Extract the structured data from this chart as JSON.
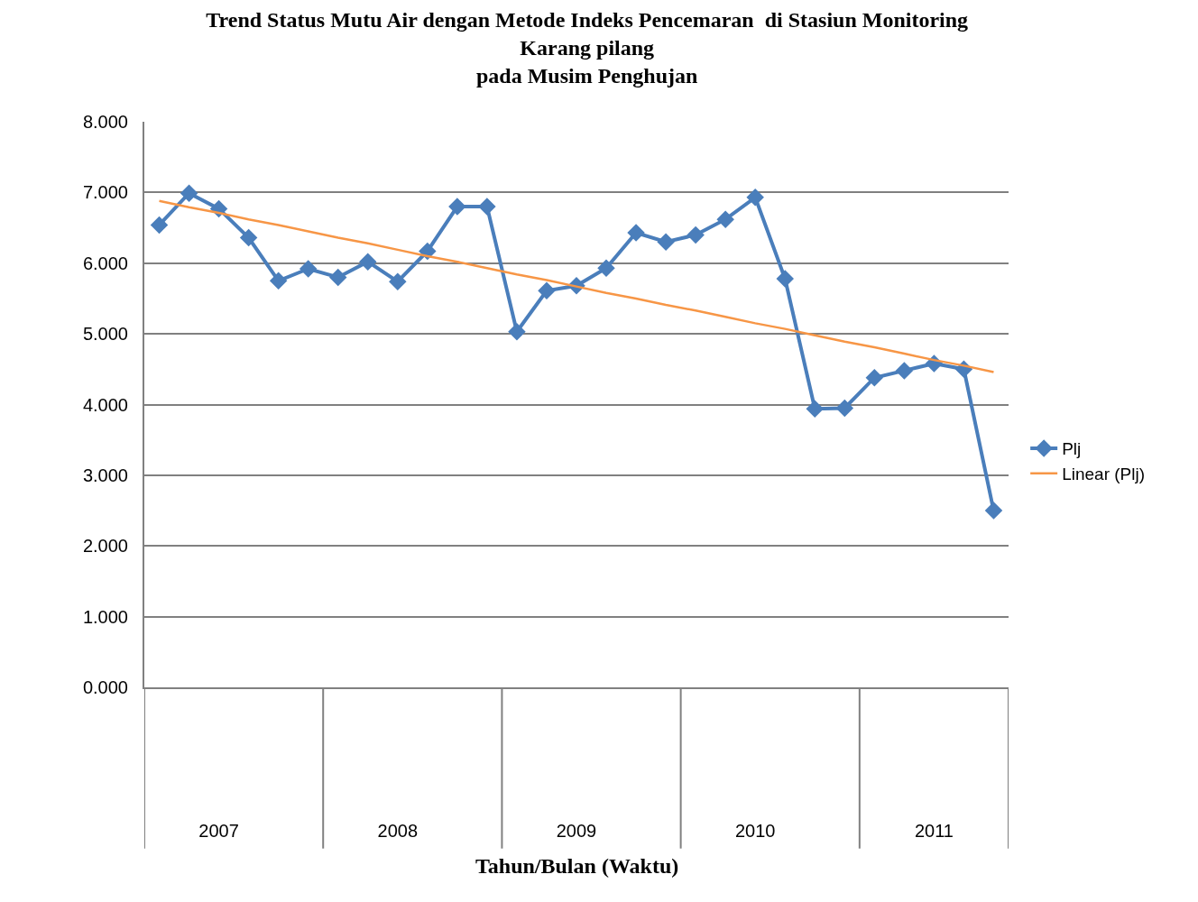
{
  "chart_data": {
    "type": "line",
    "title": "Trend Status Mutu Air dengan Metode Indeks Pencemaran  di Stasiun Monitoring\nKarang pilang\npada Musim Penghujan",
    "xlabel": "Tahun/Bulan (Waktu)",
    "categories": [
      null,
      null,
      "2007",
      null,
      null,
      null,
      null,
      null,
      "2008",
      null,
      null,
      null,
      null,
      null,
      "2009",
      null,
      null,
      null,
      null,
      null,
      "2010",
      null,
      null,
      null,
      null,
      null,
      "2011",
      null,
      null
    ],
    "series": [
      {
        "name": "Plj",
        "color": "#4a7ebb",
        "values": [
          6.54,
          6.99,
          6.77,
          6.36,
          5.75,
          5.92,
          5.8,
          6.02,
          5.74,
          6.17,
          6.8,
          6.8,
          5.03,
          5.61,
          5.68,
          5.93,
          6.43,
          6.3,
          6.4,
          6.62,
          6.93,
          5.78,
          3.94,
          3.95,
          4.38,
          4.48,
          4.58,
          4.5,
          2.5
        ]
      },
      {
        "name": "Linear (Plj)",
        "color": "#f79646",
        "marker": "none",
        "values": [
          6.88,
          6.79,
          6.71,
          6.62,
          6.54,
          6.45,
          6.36,
          6.28,
          6.19,
          6.1,
          6.02,
          5.93,
          5.84,
          5.76,
          5.67,
          5.58,
          5.5,
          5.41,
          5.33,
          5.24,
          5.15,
          5.07,
          4.98,
          4.89,
          4.81,
          4.72,
          4.63,
          4.55,
          4.46
        ]
      }
    ],
    "ylim": [
      0,
      8
    ],
    "yticks": [
      {
        "value": 0,
        "label": "0.000"
      },
      {
        "value": 1,
        "label": "1.000"
      },
      {
        "value": 2,
        "label": "2.000"
      },
      {
        "value": 3,
        "label": "3.000"
      },
      {
        "value": 4,
        "label": "4.000"
      },
      {
        "value": 5,
        "label": "5.000"
      },
      {
        "value": 6,
        "label": "6.000"
      },
      {
        "value": 7,
        "label": "7.000"
      },
      {
        "value": 8,
        "label": "8.000"
      }
    ],
    "grid": "y",
    "legend": "right",
    "marker": "diamond",
    "line_style": "solid"
  }
}
